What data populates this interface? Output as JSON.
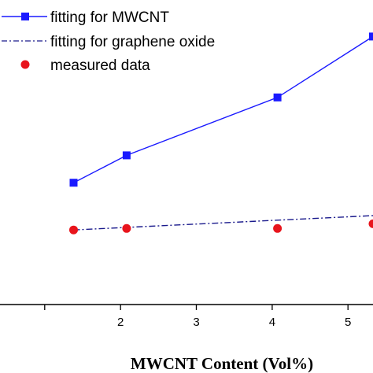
{
  "chart_data": {
    "type": "line",
    "xlabel": "MWCNT Content (Vol%)",
    "ylabel": "",
    "xlim": [
      0.41,
      5.33
    ],
    "ylim": [
      0,
      1
    ],
    "xticks": [
      {
        "value": 1,
        "label": ""
      },
      {
        "value": 2,
        "label": "2"
      },
      {
        "value": 3,
        "label": "3"
      },
      {
        "value": 4,
        "label": "4"
      },
      {
        "value": 5,
        "label": "5"
      }
    ],
    "grid": false,
    "legend_position": "top-left",
    "series": [
      {
        "name": "fitting for MWCNT",
        "kind": "line-with-markers",
        "marker": "square",
        "line_style": "solid",
        "color": "#1a1aff",
        "x": [
          1.38,
          2.08,
          4.07,
          5.33
        ],
        "y": [
          0.4,
          0.49,
          0.68,
          0.88
        ]
      },
      {
        "name": "fitting for graphene oxide",
        "kind": "line",
        "line_style": "dash-dot",
        "color": "#1a1a8c",
        "x": [
          1.38,
          5.33
        ],
        "y": [
          0.245,
          0.292
        ]
      },
      {
        "name": "measured data",
        "kind": "scatter",
        "marker": "circle",
        "color": "#e8141c",
        "x": [
          1.38,
          2.08,
          4.07,
          5.33
        ],
        "y": [
          0.245,
          0.25,
          0.25,
          0.265
        ]
      }
    ]
  }
}
